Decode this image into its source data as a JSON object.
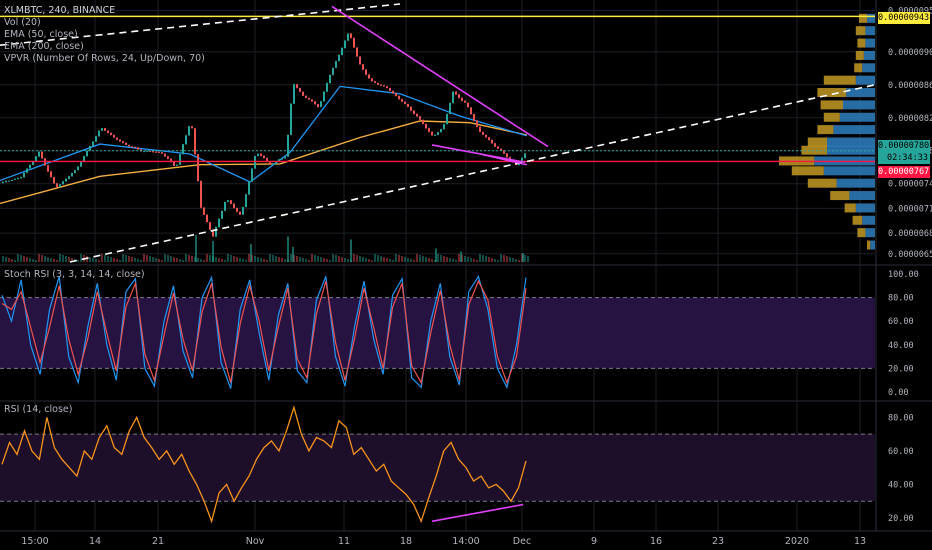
{
  "colors": {
    "background": "#000000",
    "grid": "#1c1f26",
    "candle_up": "#26a69a",
    "candle_down": "#ef5350",
    "ema50": "#2196f3",
    "ema200": "#f5b041",
    "stoch_k": "#2196f3",
    "stoch_d": "#ef5350",
    "stoch_band": "#2a1548",
    "rsi_line": "#f7931a",
    "rsi_band": "#1f0f2b",
    "trend_magenta": "#e040fb",
    "trend_white": "#ffffff",
    "resistance_yellow": "#ffeb3b",
    "support_red": "#ff1744",
    "price_line_teal": "#26a69a",
    "vpvr_up": "#2f7fc1",
    "vpvr_down": "#c49a24"
  },
  "legend": {
    "title": "XLMBTC, 240, BINANCE",
    "vol": "Vol (20)",
    "ema50": "EMA (50, close)",
    "ema200": "EMA (200, close)",
    "vpvr": "VPVR (Number Of Rows, 24, Up/Down, 70)",
    "stoch": "Stoch RSI (3, 3, 14, 14, close)",
    "rsi": "RSI (14, close)"
  },
  "price_tags": {
    "resistance": "0.00000943",
    "current": "0.00000780",
    "countdown": "02:34:33",
    "support": "0.00000767"
  },
  "chart_data": [
    {
      "type": "candlestick",
      "title": "XLMBTC, 240, BINANCE",
      "x_tick_labels": [
        "15:00",
        "14",
        "21",
        "Nov",
        "11",
        "18",
        "14:00",
        "Dec",
        "9",
        "16",
        "23",
        "2020",
        "13"
      ],
      "y_tick_labels": [
        "0.00000950",
        "0.00000900",
        "0.00000860",
        "0.00000820",
        "0.00000780",
        "0.00000740",
        "0.00000710",
        "0.00000680",
        "0.00000655"
      ],
      "ylim": [
        6.45e-06,
        9.58e-06
      ],
      "price_path": [
        [
          0,
          7.41e-06
        ],
        [
          20,
          7.48e-06
        ],
        [
          38,
          7.78e-06
        ],
        [
          55,
          7.35e-06
        ],
        [
          75,
          7.57e-06
        ],
        [
          100,
          8.08e-06
        ],
        [
          120,
          7.9e-06
        ],
        [
          140,
          7.8e-06
        ],
        [
          160,
          7.78e-06
        ],
        [
          175,
          7.6e-06
        ],
        [
          190,
          8.18e-06
        ],
        [
          200,
          7.11e-06
        ],
        [
          212,
          6.76e-06
        ],
        [
          225,
          7.22e-06
        ],
        [
          240,
          7.01e-06
        ],
        [
          255,
          7.79e-06
        ],
        [
          270,
          7.63e-06
        ],
        [
          285,
          7.74e-06
        ],
        [
          292,
          8.62e-06
        ],
        [
          302,
          8.47e-06
        ],
        [
          318,
          8.33e-06
        ],
        [
          330,
          8.76e-06
        ],
        [
          338,
          8.96e-06
        ],
        [
          348,
          9.25e-06
        ],
        [
          358,
          8.86e-06
        ],
        [
          370,
          8.64e-06
        ],
        [
          385,
          8.57e-06
        ],
        [
          400,
          8.41e-06
        ],
        [
          415,
          8.23e-06
        ],
        [
          432,
          7.97e-06
        ],
        [
          442,
          8.08e-06
        ],
        [
          452,
          8.51e-06
        ],
        [
          465,
          8.37e-06
        ],
        [
          478,
          8.04e-06
        ],
        [
          492,
          7.88e-06
        ],
        [
          505,
          7.74e-06
        ],
        [
          515,
          7.62e-06
        ],
        [
          522,
          7.73e-06
        ],
        [
          527,
          7.82e-06
        ]
      ],
      "ema50": [
        [
          0,
          7.44e-06
        ],
        [
          100,
          7.88e-06
        ],
        [
          190,
          7.76e-06
        ],
        [
          250,
          7.42e-06
        ],
        [
          290,
          7.78e-06
        ],
        [
          340,
          8.58e-06
        ],
        [
          400,
          8.49e-06
        ],
        [
          460,
          8.22e-06
        ],
        [
          527,
          7.98e-06
        ]
      ],
      "ema200": [
        [
          0,
          7.16e-06
        ],
        [
          100,
          7.49e-06
        ],
        [
          200,
          7.63e-06
        ],
        [
          280,
          7.64e-06
        ],
        [
          360,
          7.96e-06
        ],
        [
          420,
          8.16e-06
        ],
        [
          470,
          8.14e-06
        ],
        [
          527,
          7.99e-06
        ]
      ],
      "volume_spikes": [
        [
          195,
          0.9
        ],
        [
          212,
          0.7
        ],
        [
          250,
          0.6
        ],
        [
          287,
          0.85
        ],
        [
          292,
          0.5
        ],
        [
          350,
          0.75
        ],
        [
          435,
          0.45
        ],
        [
          460,
          0.35
        ],
        [
          522,
          0.3
        ]
      ],
      "vpvr_profile": [
        [
          9.4e-06,
          0.05,
          0.05
        ],
        [
          9.25e-06,
          0.06,
          0.06
        ],
        [
          9.1e-06,
          0.06,
          0.05
        ],
        [
          8.95e-06,
          0.07,
          0.05
        ],
        [
          8.8e-06,
          0.08,
          0.05
        ],
        [
          8.65e-06,
          0.12,
          0.2
        ],
        [
          8.5e-06,
          0.18,
          0.18
        ],
        [
          8.35e-06,
          0.2,
          0.14
        ],
        [
          8.2e-06,
          0.22,
          0.1
        ],
        [
          8.05e-06,
          0.26,
          0.1
        ],
        [
          7.9e-06,
          0.3,
          0.12
        ],
        [
          7.8e-06,
          0.3,
          0.16
        ],
        [
          7.67e-06,
          0.38,
          0.22
        ],
        [
          7.55e-06,
          0.32,
          0.2
        ],
        [
          7.4e-06,
          0.24,
          0.18
        ],
        [
          7.25e-06,
          0.16,
          0.12
        ],
        [
          7.1e-06,
          0.12,
          0.07
        ],
        [
          6.95e-06,
          0.08,
          0.06
        ],
        [
          6.8e-06,
          0.06,
          0.05
        ],
        [
          6.65e-06,
          0.03,
          0.02
        ]
      ]
    },
    {
      "type": "line",
      "title": "Stoch RSI (3, 3, 14, 14, close)",
      "y_tick_labels": [
        "100.00",
        "80.00",
        "60.00",
        "40.00",
        "20.00",
        "0.00"
      ],
      "ylim": [
        0,
        100
      ],
      "series": [
        {
          "values": [
            82,
            60,
            95,
            40,
            15,
            70,
            98,
            30,
            8,
            55,
            92,
            40,
            10,
            85,
            96,
            20,
            5,
            60,
            90,
            35,
            12,
            80,
            97,
            25,
            3,
            70,
            95,
            50,
            10,
            65,
            92,
            18,
            8,
            78,
            98,
            30,
            5,
            55,
            94,
            45,
            15,
            82,
            96,
            12,
            4,
            60,
            92,
            30,
            6,
            85,
            98,
            70,
            20,
            4,
            40,
            97
          ]
        },
        {
          "values": [
            75,
            70,
            85,
            55,
            25,
            55,
            90,
            45,
            15,
            45,
            85,
            50,
            18,
            72,
            92,
            32,
            10,
            48,
            84,
            45,
            18,
            68,
            92,
            38,
            8,
            58,
            90,
            60,
            18,
            55,
            88,
            28,
            12,
            66,
            94,
            42,
            10,
            45,
            88,
            55,
            20,
            72,
            92,
            22,
            8,
            50,
            86,
            40,
            10,
            74,
            94,
            78,
            30,
            8,
            30,
            88
          ]
        }
      ]
    },
    {
      "type": "line",
      "title": "RSI (14, close)",
      "y_tick_labels": [
        "80.00",
        "60.00",
        "40.00",
        "20.00"
      ],
      "ylim": [
        14,
        88
      ],
      "series": [
        {
          "values": [
            52,
            65,
            58,
            72,
            60,
            55,
            80,
            62,
            55,
            50,
            45,
            60,
            55,
            68,
            75,
            62,
            58,
            72,
            80,
            68,
            62,
            55,
            60,
            52,
            58,
            48,
            40,
            30,
            18,
            35,
            40,
            30,
            38,
            45,
            55,
            62,
            66,
            60,
            72,
            86,
            70,
            60,
            68,
            66,
            62,
            78,
            74,
            58,
            62,
            55,
            48,
            52,
            42,
            38,
            34,
            28,
            18,
            32,
            45,
            60,
            65,
            55,
            50,
            42,
            45,
            38,
            40,
            36,
            30,
            38,
            54
          ]
        }
      ]
    }
  ]
}
